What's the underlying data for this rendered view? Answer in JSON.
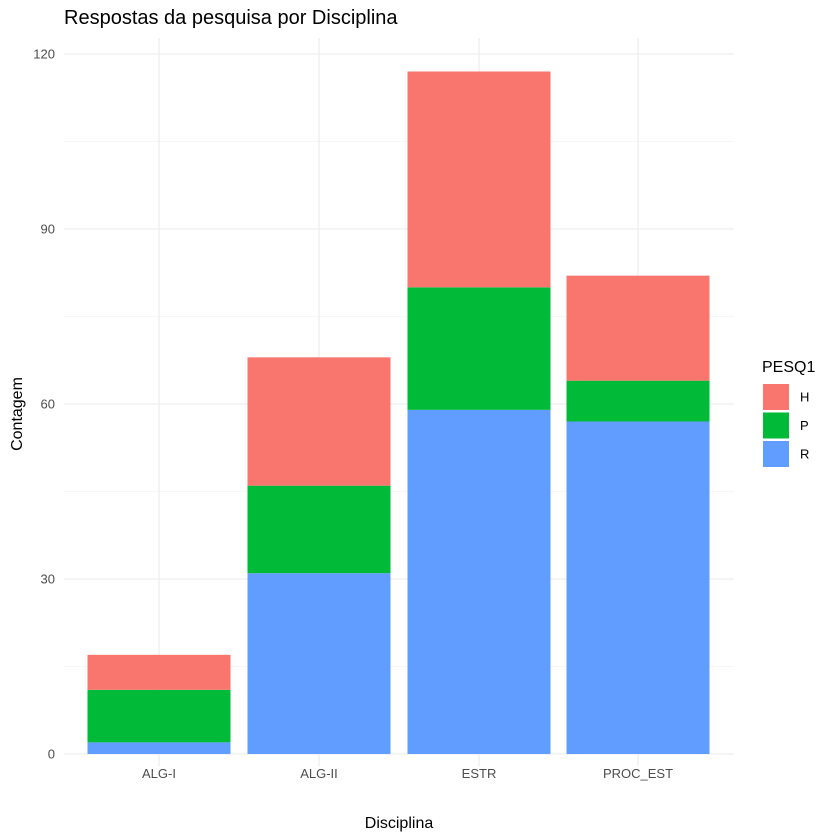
{
  "chart_data": {
    "type": "bar",
    "stacked": true,
    "title": "Respostas da pesquisa por Disciplina",
    "xlabel": "Disciplina",
    "ylabel": "Contagem",
    "categories": [
      "ALG-I",
      "ALG-II",
      "ESTR",
      "PROC_EST"
    ],
    "series": [
      {
        "name": "R",
        "color": "#619CFF",
        "values": [
          2,
          31,
          59,
          57
        ]
      },
      {
        "name": "P",
        "color": "#00BA38",
        "values": [
          9,
          15,
          21,
          7
        ]
      },
      {
        "name": "H",
        "color": "#F8766D",
        "values": [
          6,
          22,
          37,
          18
        ]
      }
    ],
    "stack_order_bottom_to_top": [
      "R",
      "P",
      "H"
    ],
    "ylim": [
      0,
      122
    ],
    "y_ticks": [
      0,
      30,
      60,
      90,
      120
    ],
    "grid": true,
    "legend": {
      "title": "PESQ1",
      "placement": "right",
      "order": [
        "H",
        "P",
        "R"
      ]
    }
  }
}
